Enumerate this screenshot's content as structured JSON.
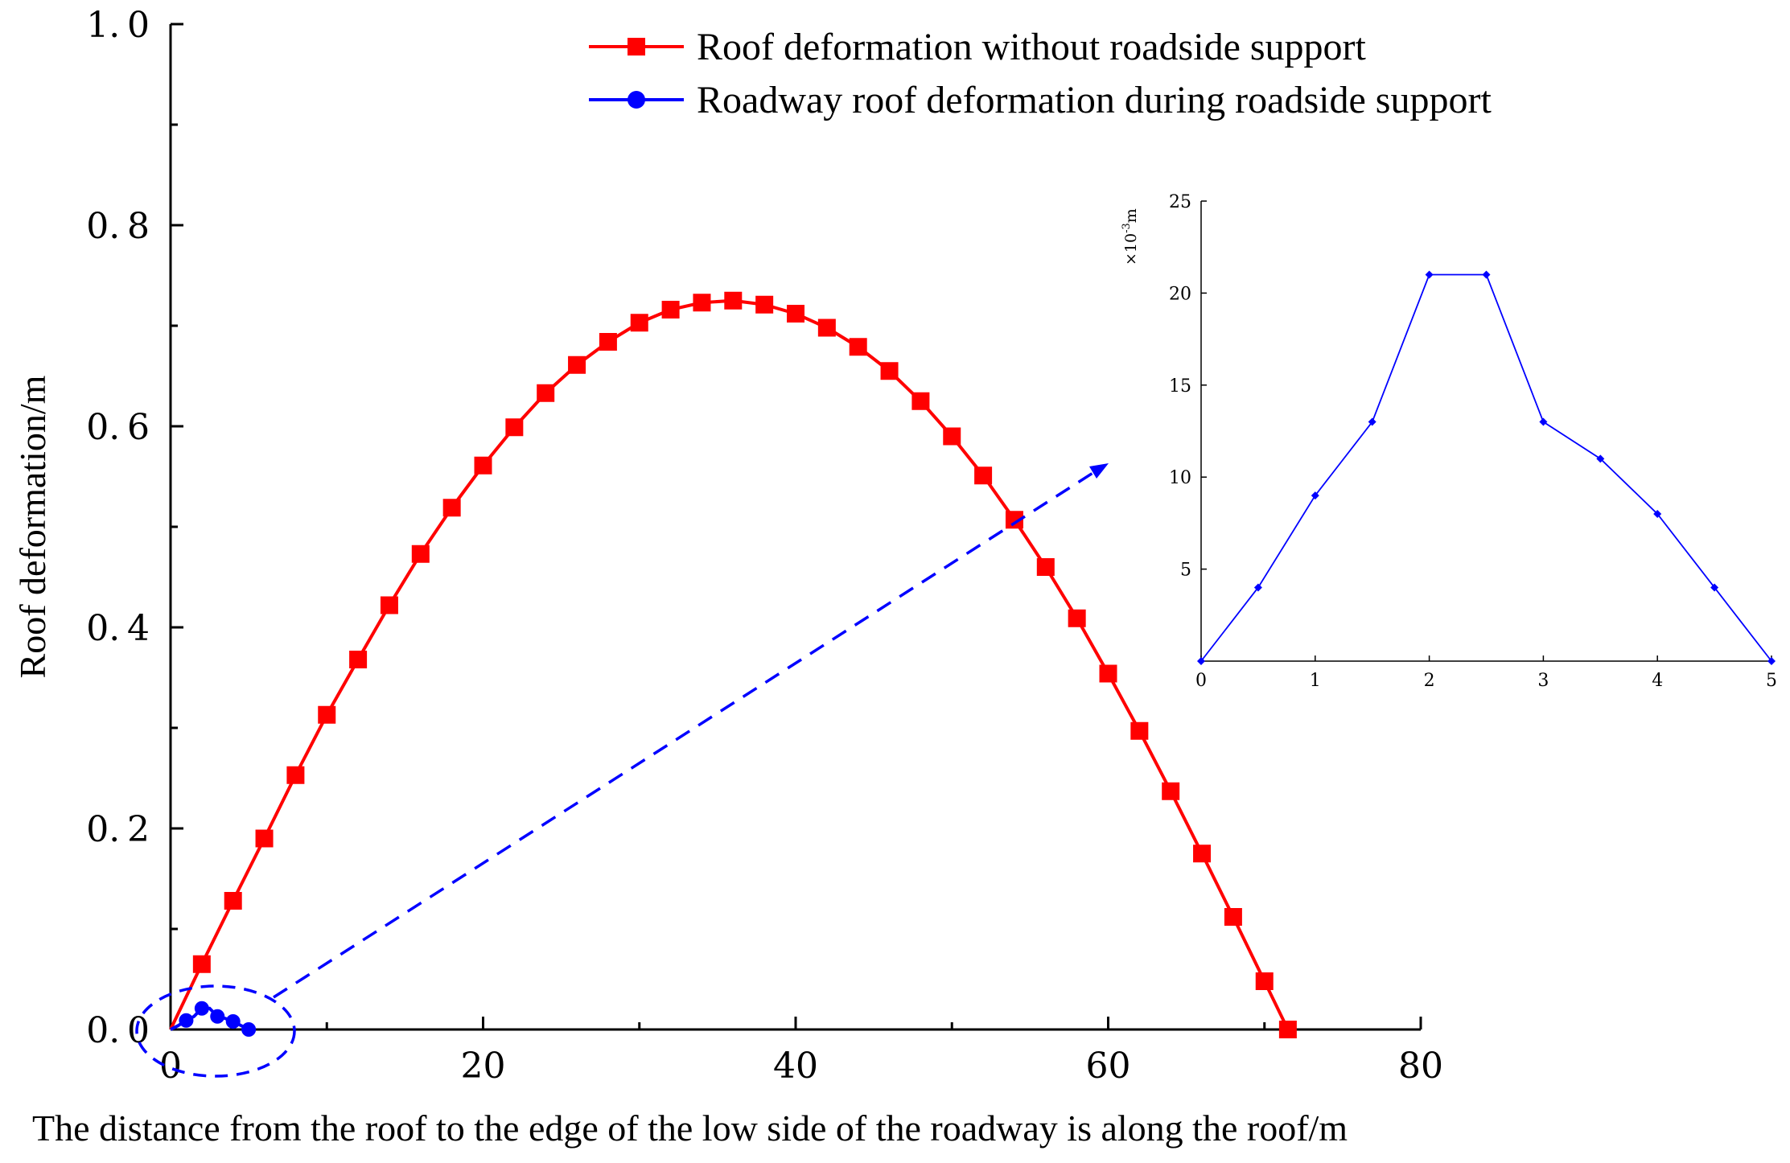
{
  "chart_data": [
    {
      "type": "line",
      "xlabel": "The distance from the roof to the edge of the low side of the roadway is along the roof/m",
      "ylabel": "Roof deformation/m",
      "xlim": [
        0,
        80
      ],
      "ylim": [
        0,
        1.0
      ],
      "x_ticks": [
        "0",
        "20",
        "40",
        "60",
        "80"
      ],
      "y_ticks": [
        "0.0",
        "0.2",
        "0.4",
        "0.6",
        "0.8",
        "1.0"
      ],
      "grid": false,
      "legend_position": "top-right",
      "series": [
        {
          "name": "Roof deformation without roadside support",
          "color": "#ff0000",
          "marker": "square",
          "x": [
            0,
            2,
            4,
            6,
            8,
            10,
            12,
            14,
            16,
            18,
            20,
            22,
            24,
            26,
            28,
            30,
            32,
            34,
            36,
            38,
            40,
            42,
            44,
            46,
            48,
            50,
            52,
            54,
            56,
            58,
            60,
            62,
            64,
            66,
            68,
            70,
            71.5
          ],
          "y": [
            0.0,
            0.065,
            0.128,
            0.19,
            0.253,
            0.313,
            0.368,
            0.422,
            0.473,
            0.519,
            0.561,
            0.599,
            0.633,
            0.661,
            0.684,
            0.703,
            0.716,
            0.723,
            0.725,
            0.721,
            0.712,
            0.698,
            0.679,
            0.655,
            0.625,
            0.59,
            0.551,
            0.507,
            0.46,
            0.409,
            0.354,
            0.297,
            0.237,
            0.175,
            0.112,
            0.048,
            0.0
          ]
        },
        {
          "name": "Roadway roof deformation during roadside support",
          "color": "#0000ff",
          "marker": "circle",
          "x": [
            0,
            0.5,
            1,
            1.5,
            2,
            2.5,
            3,
            3.5,
            4,
            4.5,
            5
          ],
          "y": [
            0.0,
            0.004,
            0.009,
            0.013,
            0.021,
            0.021,
            0.013,
            0.011,
            0.008,
            0.004,
            0.0
          ]
        }
      ]
    },
    {
      "type": "line",
      "ylabel_unit": {
        "base": "×10",
        "exponent": "-3",
        "suffix": "m"
      },
      "xlim": [
        0,
        5
      ],
      "ylim": [
        0,
        25
      ],
      "x_ticks": [
        "0",
        "1",
        "2",
        "3",
        "4",
        "5"
      ],
      "y_ticks": [
        "5",
        "10",
        "15",
        "20",
        "25"
      ],
      "series": [
        {
          "color": "#0000ff",
          "marker": "diamond",
          "x": [
            0,
            0.5,
            1,
            1.5,
            2,
            2.5,
            3,
            3.5,
            4,
            4.5,
            5
          ],
          "y": [
            0,
            4,
            9,
            13,
            21,
            21,
            13,
            11,
            8,
            4,
            0
          ]
        }
      ]
    }
  ]
}
